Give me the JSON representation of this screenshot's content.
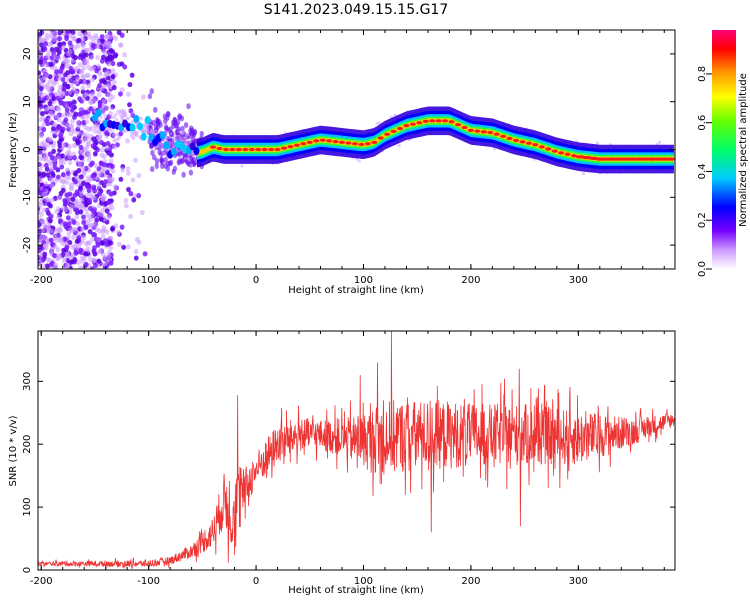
{
  "figure": {
    "title": "S141.2023.049.15.15.G17"
  },
  "chart_data": [
    {
      "type": "heatmap",
      "title": "",
      "xlabel": "Height of straight line (km)",
      "ylabel": "Frequency (Hz)",
      "xlim": [
        -203,
        390
      ],
      "ylim": [
        -25,
        25
      ],
      "xticks": [
        -200,
        -100,
        0,
        100,
        200,
        300
      ],
      "yticks": [
        -20,
        -10,
        0,
        10,
        20
      ],
      "tick_labels_x": [
        "-200",
        "-100",
        "0",
        "100",
        "200",
        "300"
      ],
      "tick_labels_y": [
        "-20",
        "-10",
        "0",
        "10",
        "20"
      ],
      "colorbar": {
        "label": "Normalized spectral amplitude",
        "range": [
          0,
          0.98
        ],
        "ticks": [
          0.0,
          0.2,
          0.4,
          0.6,
          0.8
        ],
        "tick_labels": [
          "0.0",
          "0.2",
          "0.4",
          "0.6",
          "0.8"
        ],
        "colormap": [
          "#ffffff",
          "#7700ff",
          "#0000ff",
          "#00ffff",
          "#00ff00",
          "#ffff00",
          "#ff8800",
          "#ff0000",
          "#ff0088"
        ]
      },
      "ridge": {
        "x": [
          -150,
          -130,
          -110,
          -100,
          -90,
          -80,
          -70,
          -60,
          -50,
          -40,
          -30,
          -20,
          0,
          20,
          40,
          60,
          80,
          100,
          110,
          120,
          140,
          160,
          180,
          200,
          220,
          240,
          260,
          280,
          300,
          320,
          340,
          360,
          390
        ],
        "freq": [
          6,
          5,
          4.5,
          4,
          2,
          1,
          2,
          -1,
          -0.5,
          0.5,
          0,
          0,
          0,
          0,
          1,
          2,
          1.5,
          1,
          1.5,
          3,
          5,
          6,
          6,
          4,
          3.5,
          2,
          1,
          -0.5,
          -1.5,
          -2,
          -2,
          -2,
          -2
        ]
      }
    },
    {
      "type": "line",
      "title": "",
      "xlabel": "Height of straight line (km)",
      "ylabel": "SNR (10 * v/v)",
      "xlim": [
        -203,
        390
      ],
      "ylim": [
        0,
        380
      ],
      "xticks": [
        -200,
        -100,
        0,
        100,
        200,
        300
      ],
      "yticks": [
        0,
        100,
        200,
        300
      ],
      "tick_labels_x": [
        "-200",
        "-100",
        "0",
        "100",
        "200",
        "300"
      ],
      "tick_labels_y": [
        "0",
        "100",
        "200",
        "300"
      ],
      "color": "#ee3333",
      "envelope": {
        "x": [
          -203,
          -100,
          -80,
          -60,
          -40,
          -30,
          -20,
          -10,
          0,
          20,
          40,
          60,
          80,
          100,
          120,
          150,
          180,
          200,
          250,
          300,
          350,
          390
        ],
        "mean": [
          10,
          10,
          15,
          30,
          60,
          110,
          90,
          130,
          160,
          200,
          215,
          215,
          210,
          205,
          210,
          215,
          215,
          215,
          215,
          210,
          220,
          240
        ],
        "spread": [
          6,
          10,
          12,
          20,
          45,
          80,
          130,
          60,
          50,
          60,
          50,
          45,
          55,
          80,
          110,
          100,
          100,
          90,
          90,
          80,
          40,
          20
        ]
      },
      "peaks": [
        {
          "x": -17,
          "y": 278
        },
        {
          "x": 126,
          "y": 380
        },
        {
          "x": 113,
          "y": 330
        },
        {
          "x": 97,
          "y": 310
        },
        {
          "x": 245,
          "y": 320
        },
        {
          "x": 246,
          "y": 70
        },
        {
          "x": 163,
          "y": 60
        }
      ]
    }
  ]
}
